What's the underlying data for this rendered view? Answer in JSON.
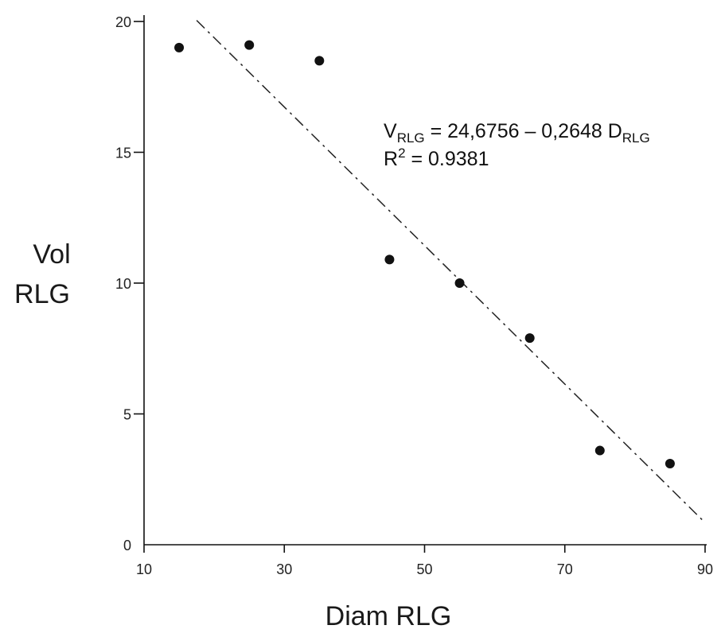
{
  "chart_data": {
    "type": "scatter",
    "xlabel": "Diam RLG",
    "ylabel_lines": [
      "Vol",
      "RLG"
    ],
    "xlim": [
      10,
      90
    ],
    "ylim": [
      0,
      20
    ],
    "x_ticks": [
      10,
      30,
      50,
      70,
      90
    ],
    "y_ticks": [
      0,
      5,
      10,
      15,
      20
    ],
    "grid": false,
    "series": [
      {
        "points": [
          {
            "x": 15,
            "y": 19.0
          },
          {
            "x": 25,
            "y": 19.1
          },
          {
            "x": 35,
            "y": 18.5
          },
          {
            "x": 45,
            "y": 10.9
          },
          {
            "x": 55,
            "y": 10.0
          },
          {
            "x": 65,
            "y": 7.9
          },
          {
            "x": 75,
            "y": 3.6
          },
          {
            "x": 85,
            "y": 3.1
          }
        ]
      }
    ],
    "trendline": {
      "intercept": 24.6756,
      "slope": -0.2648,
      "x_range": [
        17.5,
        90
      ],
      "style": "dash-dot"
    },
    "annotation": {
      "equation": {
        "var": "V",
        "var_sub": "RLG",
        "middle": " = 24,6756 – 0,2648 D",
        "end_sub": "RLG"
      },
      "r2": {
        "prefix": "R",
        "sup": "2",
        "rest": " = 0.9381"
      }
    },
    "colors": {
      "point": "#111111",
      "axis": "#111111",
      "trendline": "#222222"
    }
  }
}
